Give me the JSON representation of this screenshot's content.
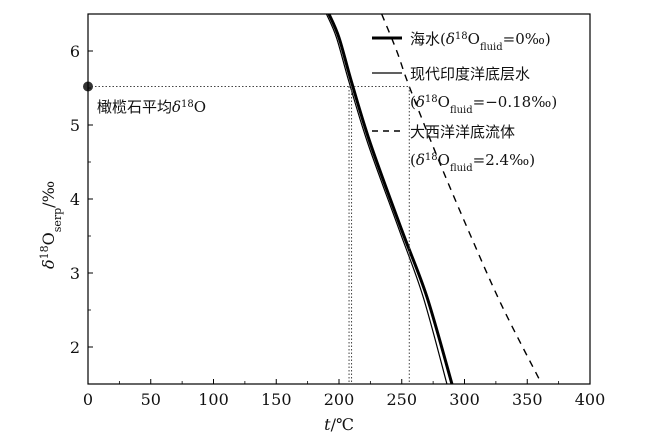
{
  "chart_data": {
    "type": "line",
    "x_axis": {
      "label_main": "t",
      "label_unit": "/℃",
      "lim": [
        0,
        400
      ],
      "ticks": [
        0,
        50,
        100,
        150,
        200,
        250,
        300,
        350,
        400
      ],
      "tick_labels": [
        "0",
        "50",
        "100",
        "150",
        "200",
        "250",
        "300",
        "350",
        "400"
      ]
    },
    "y_axis": {
      "label_delta": "δ",
      "label_sup": "18",
      "label_O": "O",
      "label_sub": "serp",
      "label_unit": "/‰",
      "lim": [
        1.5,
        6.5
      ],
      "ticks": [
        2,
        3,
        4,
        5,
        6
      ],
      "tick_labels": [
        "2",
        "3",
        "4",
        "5",
        "6"
      ]
    },
    "grid": false,
    "legend_position": "top-right",
    "series": [
      {
        "key": "seawater",
        "name_text": "海水(",
        "name_delta": "δ",
        "name_sup": "18",
        "name_O": "O",
        "name_sub": "fluid",
        "name_value": "=0‰)",
        "name_line2": "",
        "style": "solid-thick",
        "points": [
          [
            192,
            6.5
          ],
          [
            200,
            6.18
          ],
          [
            210,
            5.58
          ],
          [
            225,
            4.75
          ],
          [
            250,
            3.58
          ],
          [
            270,
            2.68
          ],
          [
            290,
            1.5
          ]
        ]
      },
      {
        "key": "modern_indian_ocean_bottom_water",
        "name_text": "现代印度洋底层水",
        "name_delta": "δ",
        "name_sup": "18",
        "name_O": "O",
        "name_sub": "fluid",
        "name_value": "=−0.18‰)",
        "name_line2_prefix": "(",
        "style": "solid-thin",
        "points": [
          [
            190,
            6.5
          ],
          [
            198,
            6.18
          ],
          [
            208,
            5.58
          ],
          [
            223,
            4.75
          ],
          [
            248,
            3.58
          ],
          [
            267,
            2.68
          ],
          [
            286,
            1.5
          ]
        ]
      },
      {
        "key": "atlantic_bottom_fluid",
        "name_text": "大西洋洋底流体",
        "name_delta": "δ",
        "name_sup": "18",
        "name_O": "O",
        "name_sub": "fluid",
        "name_value": "=2.4‰)",
        "name_line2_prefix": "(",
        "style": "dashed",
        "points": [
          [
            234,
            6.5
          ],
          [
            246,
            6.0
          ],
          [
            256,
            5.52
          ],
          [
            280,
            4.5
          ],
          [
            305,
            3.5
          ],
          [
            330,
            2.55
          ],
          [
            360,
            1.55
          ]
        ]
      }
    ],
    "annotation": {
      "marker_x": 0,
      "marker_y": 5.52,
      "text_main": "橄榄石平均",
      "text_delta": "δ",
      "text_sup": "18",
      "text_O": "O",
      "reference_y": 5.52,
      "reference_x": [
        208,
        210,
        256
      ],
      "colors": {
        "marker": "#333333",
        "guide": "#444444"
      }
    }
  }
}
